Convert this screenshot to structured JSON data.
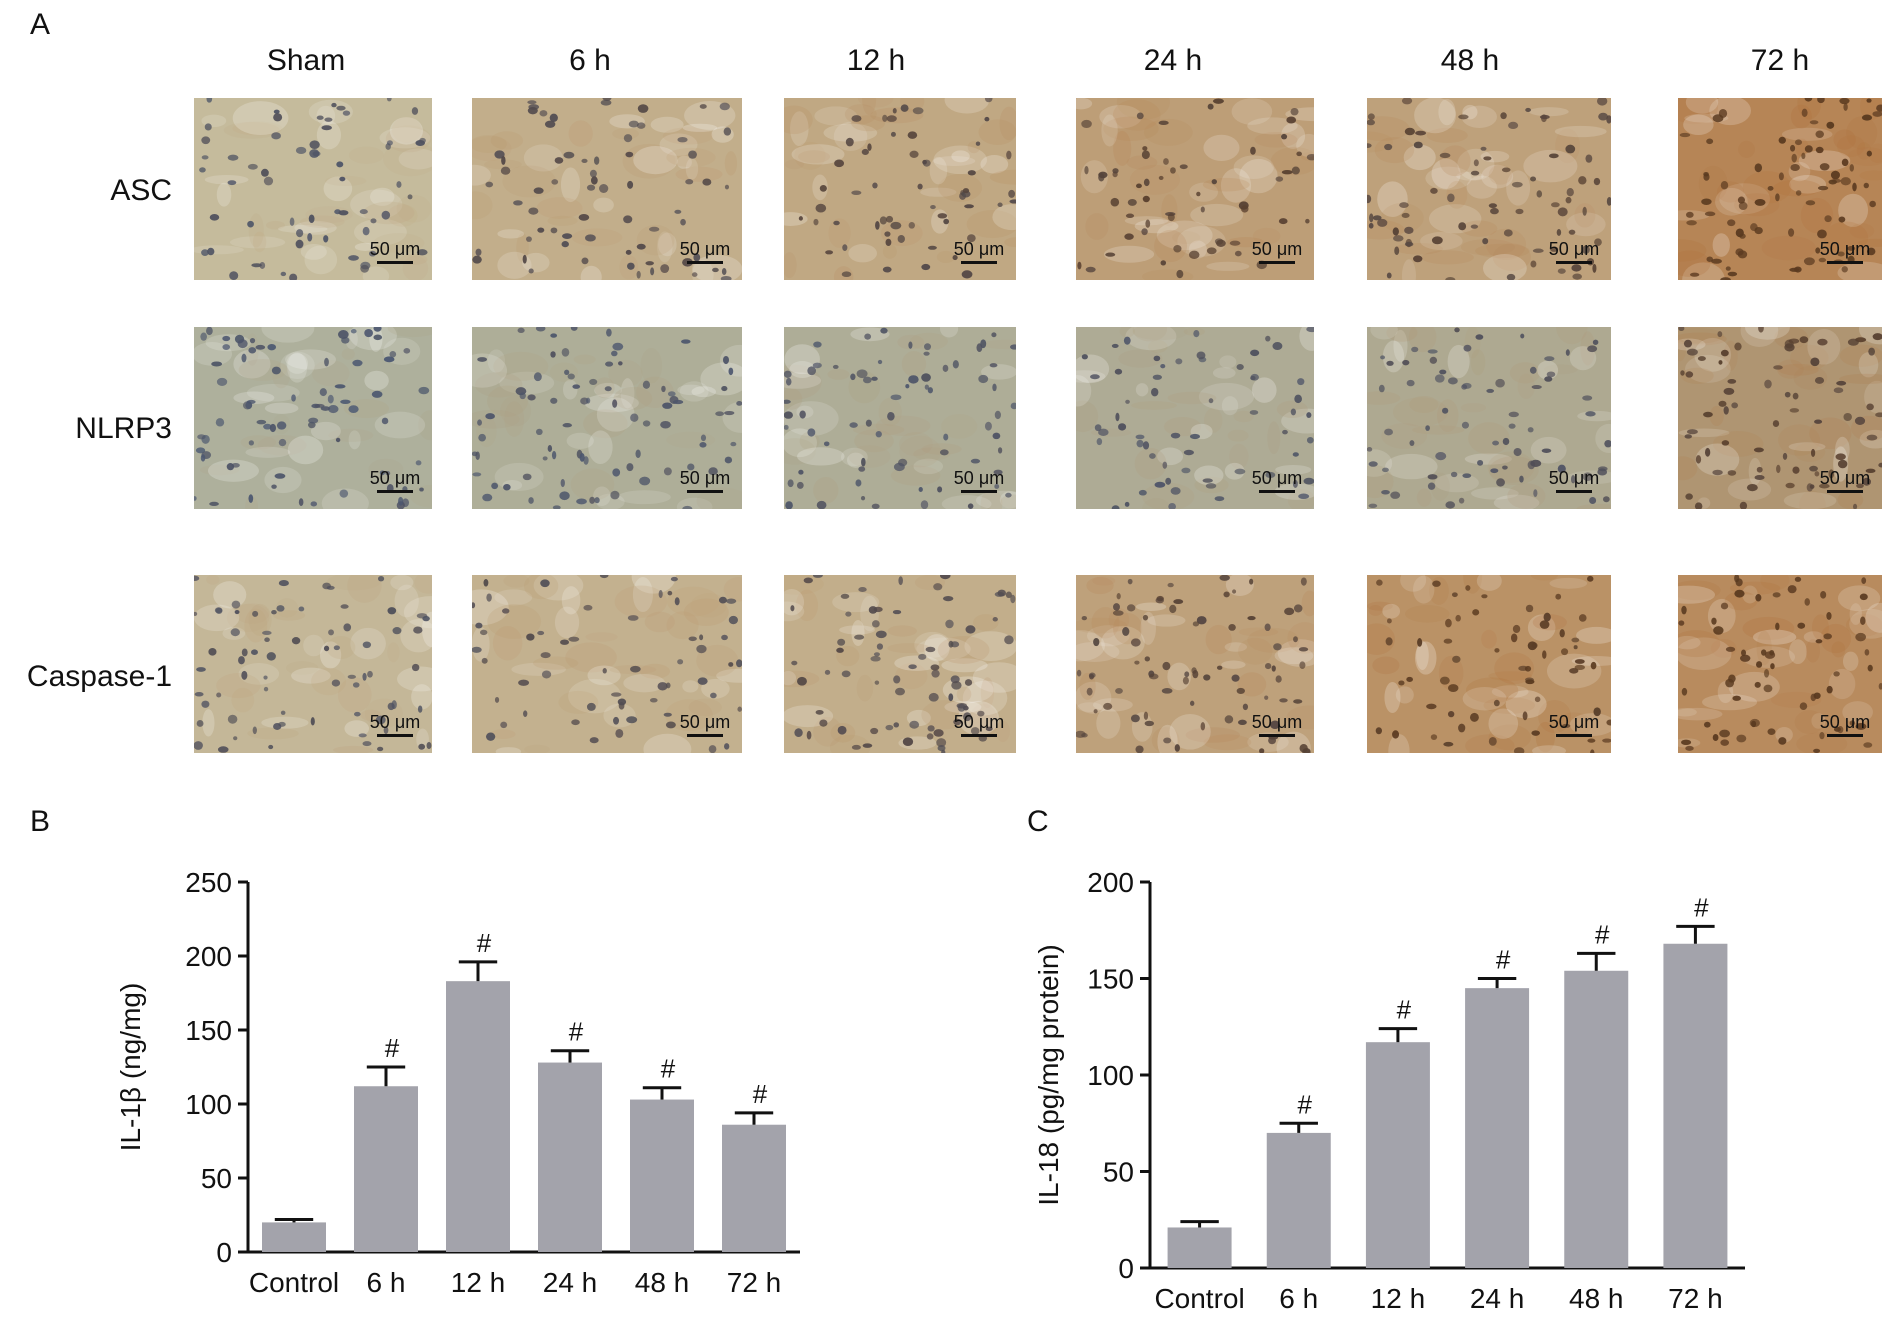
{
  "panels": {
    "a": "A",
    "b": "B",
    "c": "C"
  },
  "micrograph": {
    "columns": [
      "Sham",
      "6 h",
      "12 h",
      "24 h",
      "48 h",
      "72 h"
    ],
    "rows": [
      "ASC",
      "NLRP3",
      "Caspase-1"
    ],
    "scale_bar_label": "50 μm",
    "stain_intensity": [
      [
        0.15,
        0.35,
        0.45,
        0.6,
        0.55,
        1.0
      ],
      [
        0.05,
        0.1,
        0.12,
        0.15,
        0.2,
        0.6
      ],
      [
        0.2,
        0.3,
        0.35,
        0.55,
        0.8,
        0.9
      ]
    ],
    "colors": {
      "background_light": "#c8c4a8",
      "background_blue": "#aeb3a0",
      "brown": "#b0703a",
      "nucleus_blue": "#4a5a78",
      "nucleus_brown": "#5a3a20"
    }
  },
  "chart_data": [
    {
      "type": "bar",
      "panel": "B",
      "categories": [
        "Control",
        "6 h",
        "12 h",
        "24 h",
        "48 h",
        "72 h"
      ],
      "values": [
        20,
        112,
        183,
        128,
        103,
        86
      ],
      "errors": [
        2,
        13,
        13,
        8,
        8,
        8
      ],
      "annotations": [
        "",
        "#",
        "#",
        "#",
        "#",
        "#"
      ],
      "xlabel": "",
      "ylabel": "IL-1β (ng/mg)",
      "ylim": [
        0,
        250
      ],
      "yticks": [
        0,
        50,
        100,
        150,
        200,
        250
      ],
      "bar_color": "#a3a3ab",
      "grid": false
    },
    {
      "type": "bar",
      "panel": "C",
      "categories": [
        "Control",
        "6 h",
        "12 h",
        "24 h",
        "48 h",
        "72 h"
      ],
      "values": [
        21,
        70,
        117,
        145,
        154,
        168
      ],
      "errors": [
        3,
        5,
        7,
        5,
        9,
        9
      ],
      "annotations": [
        "",
        "#",
        "#",
        "#",
        "#",
        "#"
      ],
      "xlabel": "",
      "ylabel": "IL-18 (pg/mg protein)",
      "ylim": [
        0,
        200
      ],
      "yticks": [
        0,
        50,
        100,
        150,
        200
      ],
      "bar_color": "#a3a3ab",
      "grid": false
    }
  ]
}
